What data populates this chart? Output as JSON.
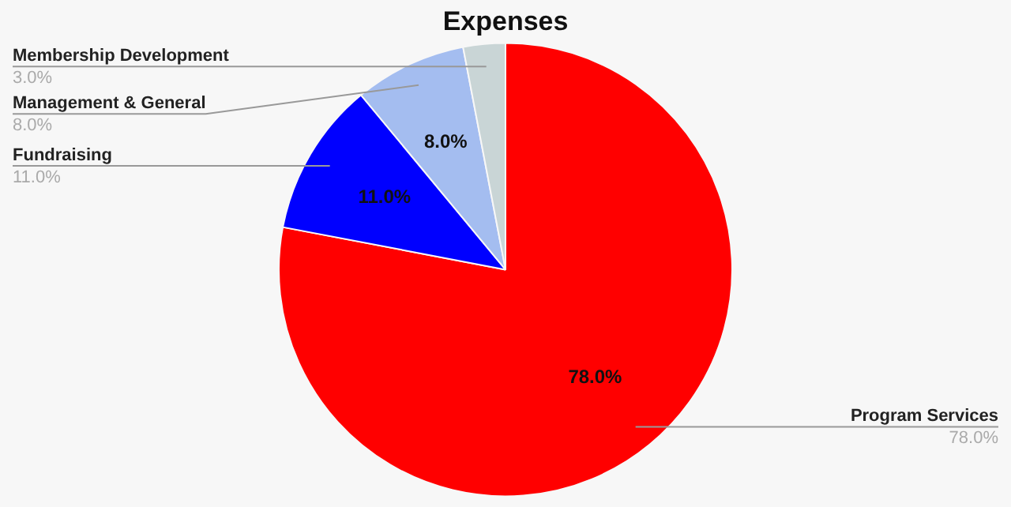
{
  "chart_data": {
    "type": "pie",
    "title": "Expenses",
    "categories": [
      "Program Services",
      "Fundraising",
      "Management & General",
      "Membership Development"
    ],
    "values": [
      78,
      11,
      8,
      3
    ],
    "colors": [
      "#ff0000",
      "#0000ff",
      "#a4bdf0",
      "#c9d5d6"
    ],
    "value_labels": [
      "78.0%",
      "11.0%",
      "8.0%",
      "3.0%"
    ]
  }
}
